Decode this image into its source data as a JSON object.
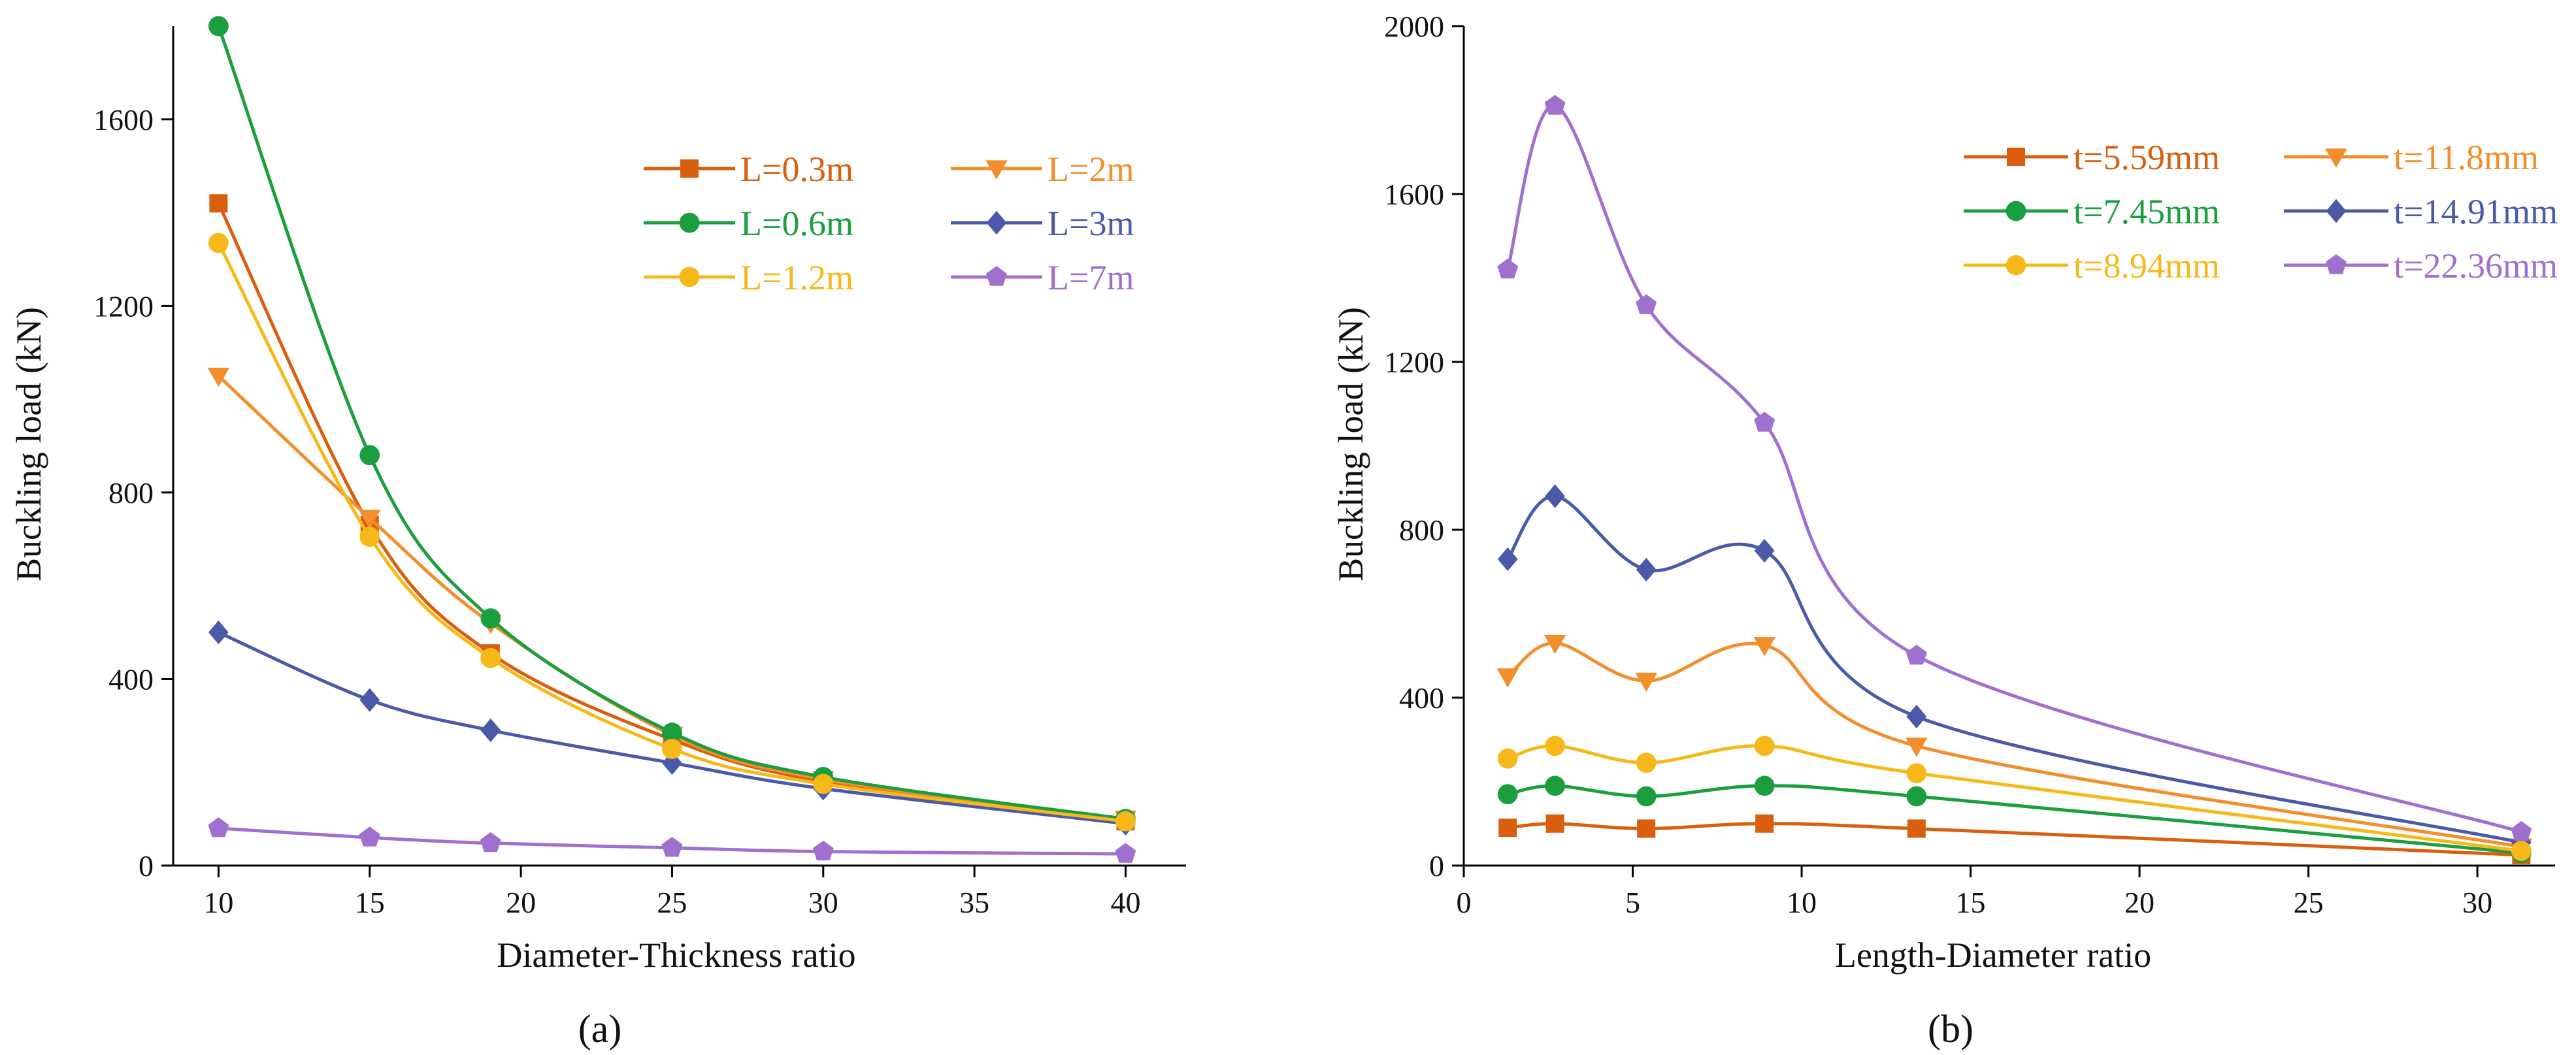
{
  "chart_data": [
    {
      "type": "line",
      "panel_label": "(a)",
      "title": "",
      "xlabel": "Diameter-Thickness ratio",
      "ylabel": "Buckling load (kN)",
      "xlim": [
        8.5,
        42
      ],
      "ylim": [
        0,
        1800
      ],
      "xticks": [
        10,
        15,
        20,
        25,
        30,
        35,
        40
      ],
      "yticks": [
        0,
        400,
        800,
        1200,
        1600
      ],
      "legend_position": "top-right",
      "legend_columns": 2,
      "series": [
        {
          "name": "L=0.3m",
          "color": "#d95f0e",
          "marker": "square",
          "x": [
            10,
            15,
            19,
            25,
            30,
            40
          ],
          "y": [
            1420,
            730,
            455,
            270,
            180,
            95
          ]
        },
        {
          "name": "L=2m",
          "color": "#f28e2b",
          "marker": "triangle-down",
          "x": [
            10,
            15,
            19,
            25,
            30,
            40
          ],
          "y": [
            1050,
            745,
            520,
            280,
            185,
            100
          ]
        },
        {
          "name": "L=0.6m",
          "color": "#1b9e3e",
          "marker": "circle",
          "x": [
            10,
            15,
            19,
            25,
            30,
            40
          ],
          "y": [
            1800,
            880,
            530,
            285,
            190,
            100
          ]
        },
        {
          "name": "L=3m",
          "color": "#4a5aa8",
          "marker": "diamond",
          "x": [
            10,
            15,
            19,
            25,
            30,
            40
          ],
          "y": [
            500,
            355,
            290,
            220,
            165,
            90
          ]
        },
        {
          "name": "L=1.2m",
          "color": "#f7b91a",
          "marker": "circle",
          "x": [
            10,
            15,
            19,
            25,
            30,
            40
          ],
          "y": [
            1335,
            705,
            445,
            250,
            175,
            95
          ]
        },
        {
          "name": "L=7m",
          "color": "#a070cf",
          "marker": "pentagon",
          "x": [
            10,
            15,
            19,
            25,
            30,
            40
          ],
          "y": [
            80,
            60,
            48,
            38,
            30,
            25
          ]
        }
      ]
    },
    {
      "type": "line",
      "panel_label": "(b)",
      "title": "",
      "xlabel": "Length-Diameter ratio",
      "ylabel": "Buckling load (kN)",
      "xlim": [
        0,
        32.3
      ],
      "ylim": [
        0,
        2000
      ],
      "xticks": [
        0,
        5,
        10,
        15,
        20,
        25,
        30
      ],
      "yticks": [
        0,
        400,
        800,
        1200,
        1600,
        2000
      ],
      "legend_position": "top-right",
      "legend_columns": 2,
      "series": [
        {
          "name": "t=5.59mm",
          "color": "#d95f0e",
          "marker": "square",
          "x": [
            1.3,
            2.7,
            5.4,
            8.9,
            13.4,
            31.3
          ],
          "y": [
            90,
            100,
            88,
            100,
            88,
            25
          ]
        },
        {
          "name": "t=11.8mm",
          "color": "#f28e2b",
          "marker": "triangle-down",
          "x": [
            1.3,
            2.7,
            5.4,
            8.9,
            13.4,
            31.3
          ],
          "y": [
            450,
            530,
            440,
            525,
            285,
            45
          ]
        },
        {
          "name": "t=7.45mm",
          "color": "#1b9e3e",
          "marker": "circle",
          "x": [
            1.3,
            2.7,
            5.4,
            8.9,
            13.4,
            31.3
          ],
          "y": [
            170,
            190,
            165,
            190,
            165,
            30
          ]
        },
        {
          "name": "t=14.91mm",
          "color": "#4a5aa8",
          "marker": "diamond",
          "x": [
            1.3,
            2.7,
            5.4,
            8.9,
            13.4,
            31.3
          ],
          "y": [
            730,
            880,
            705,
            750,
            355,
            55
          ]
        },
        {
          "name": "t=8.94mm",
          "color": "#f7b91a",
          "marker": "circle",
          "x": [
            1.3,
            2.7,
            5.4,
            8.9,
            13.4,
            31.3
          ],
          "y": [
            255,
            285,
            245,
            285,
            220,
            35
          ]
        },
        {
          "name": "t=22.36mm",
          "color": "#a070cf",
          "marker": "pentagon",
          "x": [
            1.3,
            2.7,
            5.4,
            8.9,
            13.4,
            31.3
          ],
          "y": [
            1420,
            1810,
            1335,
            1055,
            500,
            80
          ]
        }
      ]
    }
  ]
}
